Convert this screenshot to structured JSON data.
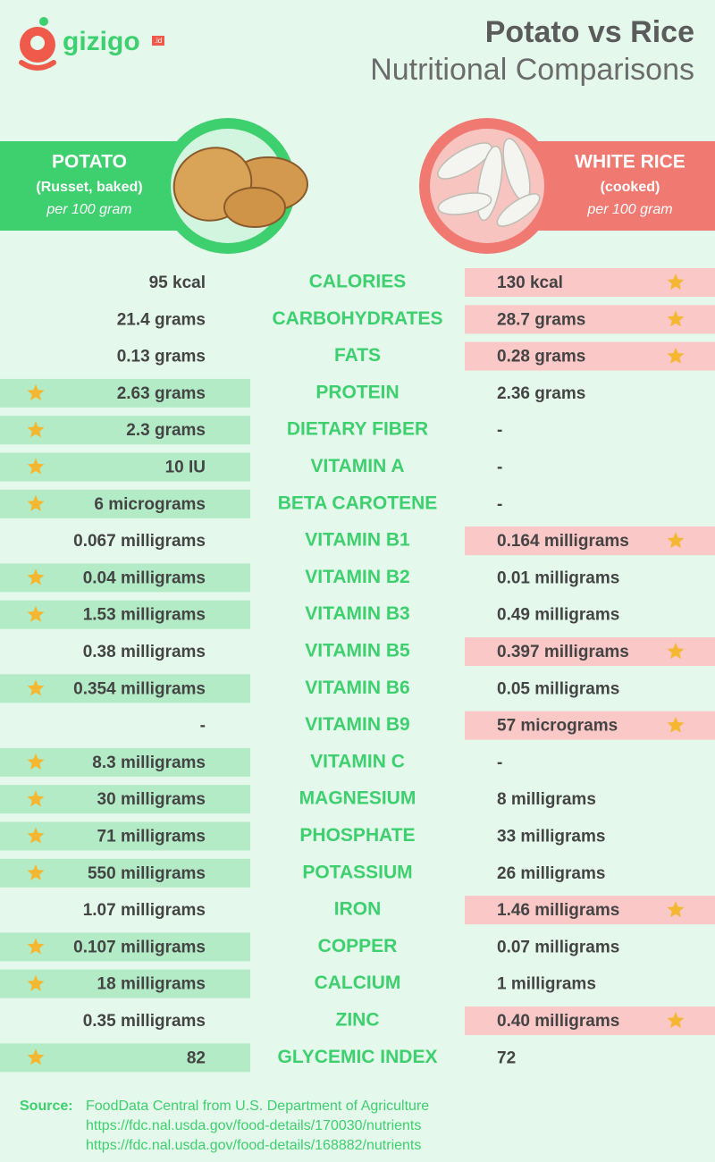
{
  "header": {
    "brand": "gizigo",
    "brand_suffix": ".id",
    "title": "Potato vs Rice",
    "subtitle": "Nutritional Comparisons"
  },
  "potato": {
    "name": "POTATO",
    "detail": "(Russet, baked)",
    "unit": "per 100 gram"
  },
  "rice": {
    "name": "WHITE RICE",
    "detail": "(cooked)",
    "unit": "per 100 gram"
  },
  "table": {
    "rows": [
      {
        "nutrient": "CALORIES",
        "potato": "95 kcal",
        "rice": "130 kcal",
        "winner": "rice"
      },
      {
        "nutrient": "CARBOHYDRATES",
        "potato": "21.4 grams",
        "rice": "28.7 grams",
        "winner": "rice"
      },
      {
        "nutrient": "FATS",
        "potato": "0.13 grams",
        "rice": "0.28 grams",
        "winner": "rice"
      },
      {
        "nutrient": "PROTEIN",
        "potato": "2.63 grams",
        "rice": "2.36 grams",
        "winner": "potato"
      },
      {
        "nutrient": "DIETARY FIBER",
        "potato": "2.3 grams",
        "rice": "-",
        "winner": "potato"
      },
      {
        "nutrient": "VITAMIN A",
        "potato": "10 IU",
        "rice": "-",
        "winner": "potato"
      },
      {
        "nutrient": "BETA CAROTENE",
        "potato": "6 micrograms",
        "rice": "-",
        "winner": "potato"
      },
      {
        "nutrient": "VITAMIN B1",
        "potato": "0.067 milligrams",
        "rice": "0.164 milligrams",
        "winner": "rice"
      },
      {
        "nutrient": "VITAMIN B2",
        "potato": "0.04 milligrams",
        "rice": "0.01 milligrams",
        "winner": "potato"
      },
      {
        "nutrient": "VITAMIN B3",
        "potato": "1.53 milligrams",
        "rice": "0.49 milligrams",
        "winner": "potato"
      },
      {
        "nutrient": "VITAMIN B5",
        "potato": "0.38 milligrams",
        "rice": "0.397 milligrams",
        "winner": "rice"
      },
      {
        "nutrient": "VITAMIN B6",
        "potato": "0.354 milligrams",
        "rice": "0.05 milligrams",
        "winner": "potato"
      },
      {
        "nutrient": "VITAMIN B9",
        "potato": "-",
        "rice": "57 micrograms",
        "winner": "rice"
      },
      {
        "nutrient": "VITAMIN C",
        "potato": "8.3 milligrams",
        "rice": "-",
        "winner": "potato"
      },
      {
        "nutrient": "MAGNESIUM",
        "potato": "30 milligrams",
        "rice": "8 milligrams",
        "winner": "potato"
      },
      {
        "nutrient": "PHOSPHATE",
        "potato": "71 milligrams",
        "rice": "33 milligrams",
        "winner": "potato"
      },
      {
        "nutrient": "POTASSIUM",
        "potato": "550 milligrams",
        "rice": "26 milligrams",
        "winner": "potato"
      },
      {
        "nutrient": "IRON",
        "potato": "1.07 milligrams",
        "rice": "1.46 milligrams",
        "winner": "rice"
      },
      {
        "nutrient": "COPPER",
        "potato": "0.107 milligrams",
        "rice": "0.07 milligrams",
        "winner": "potato"
      },
      {
        "nutrient": "CALCIUM",
        "potato": "18 milligrams",
        "rice": "1 milligrams",
        "winner": "potato"
      },
      {
        "nutrient": "ZINC",
        "potato": "0.35 milligrams",
        "rice": "0.40 milligrams",
        "winner": "rice"
      },
      {
        "nutrient": "GLYCEMIC INDEX",
        "potato": "82",
        "rice": "72",
        "winner": "potato"
      }
    ]
  },
  "source": {
    "label": "Source:",
    "lines": [
      "FoodData Central from U.S. Department of Agriculture",
      "https://fdc.nal.usda.gov/food-details/170030/nutrients",
      "https://fdc.nal.usda.gov/food-details/168882/nutrients"
    ]
  }
}
